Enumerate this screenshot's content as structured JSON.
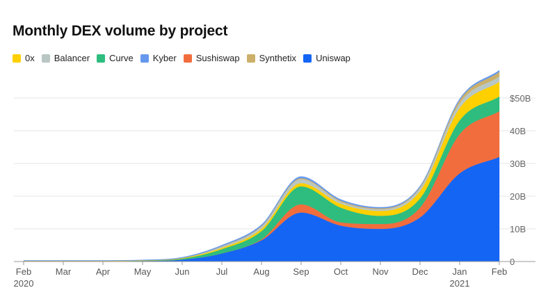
{
  "chart_data": {
    "type": "area",
    "stacked": true,
    "title": "Monthly DEX volume by project",
    "x": [
      "Feb 2020",
      "Mar 2020",
      "Apr 2020",
      "May 2020",
      "Jun 2020",
      "Jul 2020",
      "Aug 2020",
      "Sep 2020",
      "Oct 2020",
      "Nov 2020",
      "Dec 2020",
      "Jan 2021",
      "Feb 2021"
    ],
    "x_tick_labels": [
      {
        "line1": "Feb",
        "line2": "2020"
      },
      {
        "line1": "Mar",
        "line2": ""
      },
      {
        "line1": "Apr",
        "line2": ""
      },
      {
        "line1": "May",
        "line2": ""
      },
      {
        "line1": "Jun",
        "line2": ""
      },
      {
        "line1": "Jul",
        "line2": ""
      },
      {
        "line1": "Aug",
        "line2": ""
      },
      {
        "line1": "Sep",
        "line2": ""
      },
      {
        "line1": "Oct",
        "line2": ""
      },
      {
        "line1": "Nov",
        "line2": ""
      },
      {
        "line1": "Dec",
        "line2": ""
      },
      {
        "line1": "Jan",
        "line2": "2021"
      },
      {
        "line1": "Feb",
        "line2": ""
      }
    ],
    "y_unit": "billion USD",
    "ylim": [
      0,
      60
    ],
    "y_ticks": [
      0,
      10,
      20,
      30,
      40,
      50
    ],
    "y_tick_labels": [
      "0",
      "10B",
      "20B",
      "30B",
      "40B",
      "$50B"
    ],
    "grid": true,
    "legend_position": "top-left",
    "series": [
      {
        "name": "Uniswap",
        "color": "#1565f5",
        "values": [
          0.1,
          0.1,
          0.1,
          0.2,
          0.6,
          2.5,
          6.5,
          15.0,
          11.0,
          10.0,
          13.5,
          27.0,
          32.0
        ]
      },
      {
        "name": "Sushiswap",
        "color": "#f26d3d",
        "values": [
          0,
          0,
          0,
          0,
          0,
          0,
          0.3,
          2.5,
          1.0,
          1.5,
          3.0,
          12.0,
          14.0
        ]
      },
      {
        "name": "Curve",
        "color": "#2ebd7e",
        "values": [
          0.05,
          0.05,
          0.05,
          0.1,
          0.3,
          1.3,
          2.5,
          5.5,
          4.5,
          2.5,
          2.8,
          4.2,
          4.5
        ]
      },
      {
        "name": "0x",
        "color": "#ffd000",
        "values": [
          0.1,
          0.1,
          0.1,
          0.1,
          0.2,
          0.4,
          0.7,
          1.0,
          1.2,
          1.5,
          2.3,
          3.8,
          4.5
        ]
      },
      {
        "name": "Balancer",
        "color": "#b9c7c4",
        "values": [
          0,
          0,
          0,
          0,
          0,
          0.4,
          0.7,
          1.2,
          0.6,
          0.5,
          0.9,
          1.5,
          1.6
        ]
      },
      {
        "name": "Synthetix",
        "color": "#ccb06a",
        "values": [
          0,
          0,
          0,
          0,
          0,
          0.1,
          0.2,
          0.3,
          0.3,
          0.3,
          0.3,
          0.9,
          1.4
        ]
      },
      {
        "name": "Kyber",
        "color": "#6699ee",
        "values": [
          0.1,
          0.1,
          0.1,
          0.1,
          0.2,
          0.3,
          0.4,
          0.5,
          0.4,
          0.3,
          0.3,
          0.4,
          0.5
        ]
      }
    ]
  },
  "legend": {
    "items": [
      {
        "label": "0x",
        "color": "#ffd000"
      },
      {
        "label": "Balancer",
        "color": "#b9c7c4"
      },
      {
        "label": "Curve",
        "color": "#2ebd7e"
      },
      {
        "label": "Kyber",
        "color": "#6699ee"
      },
      {
        "label": "Sushiswap",
        "color": "#f26d3d"
      },
      {
        "label": "Synthetix",
        "color": "#ccb06a"
      },
      {
        "label": "Uniswap",
        "color": "#1565f5"
      }
    ]
  }
}
